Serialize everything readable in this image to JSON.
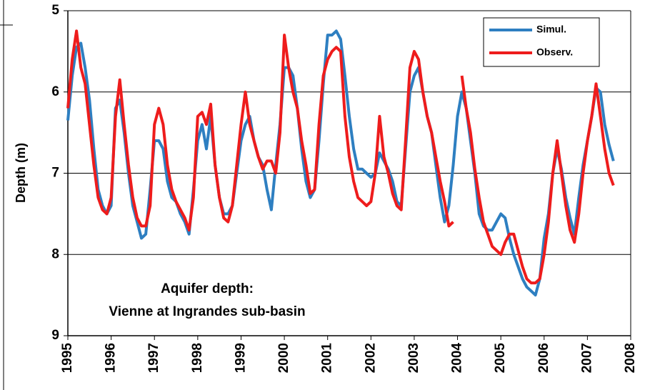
{
  "chart_data": {
    "type": "line",
    "y_label": "Depth (m)",
    "annotation": [
      "Aquifer depth:",
      "Vienne at Ingrandes sub-basin"
    ],
    "xlim": [
      1995,
      2008
    ],
    "xticks": [
      1995,
      1996,
      1997,
      1998,
      1999,
      2000,
      2001,
      2002,
      2003,
      2004,
      2005,
      2006,
      2007,
      2008
    ],
    "ylim": [
      5,
      9
    ],
    "yticks": [
      5,
      6,
      7,
      8,
      9
    ],
    "y_inverted": true,
    "grid": true,
    "legend": "upper right",
    "x": [
      1995,
      1995.1,
      1995.2,
      1995.3,
      1995.4,
      1995.5,
      1995.6,
      1995.7,
      1995.8,
      1995.9,
      1996,
      1996.1,
      1996.2,
      1996.3,
      1996.4,
      1996.5,
      1996.6,
      1996.7,
      1996.8,
      1996.9,
      1997,
      1997.1,
      1997.2,
      1997.3,
      1997.4,
      1997.5,
      1997.6,
      1997.7,
      1997.8,
      1997.9,
      1998,
      1998.1,
      1998.2,
      1998.3,
      1998.4,
      1998.5,
      1998.6,
      1998.7,
      1998.8,
      1998.9,
      1999,
      1999.1,
      1999.2,
      1999.3,
      1999.4,
      1999.5,
      1999.6,
      1999.7,
      1999.8,
      1999.9,
      2000,
      2000.1,
      2000.2,
      2000.3,
      2000.4,
      2000.5,
      2000.6,
      2000.7,
      2000.8,
      2000.9,
      2001,
      2001.1,
      2001.2,
      2001.3,
      2001.4,
      2001.5,
      2001.6,
      2001.7,
      2001.8,
      2001.9,
      2002,
      2002.1,
      2002.2,
      2002.3,
      2002.4,
      2002.5,
      2002.6,
      2002.7,
      2002.8,
      2002.9,
      2003,
      2003.1,
      2003.2,
      2003.3,
      2003.4,
      2003.5,
      2003.6,
      2003.7,
      2003.8,
      2003.9,
      2004,
      2004.1,
      2004.2,
      2004.3,
      2004.4,
      2004.5,
      2004.6,
      2004.7,
      2004.8,
      2004.9,
      2005,
      2005.1,
      2005.2,
      2005.3,
      2005.4,
      2005.5,
      2005.6,
      2005.7,
      2005.8,
      2005.9,
      2006,
      2006.1,
      2006.2,
      2006.3,
      2006.4,
      2006.5,
      2006.6,
      2006.7,
      2006.8,
      2006.9,
      2007,
      2007.1,
      2007.2,
      2007.3,
      2007.4,
      2007.5,
      2007.6
    ],
    "series": [
      {
        "name": "Simul.",
        "color": "#2e7fc1",
        "values": [
          6.35,
          5.8,
          5.45,
          5.4,
          5.7,
          6.1,
          6.7,
          7.2,
          7.4,
          7.5,
          7.4,
          6.2,
          6.1,
          6.5,
          7.0,
          7.4,
          7.6,
          7.8,
          7.75,
          7.2,
          6.6,
          6.6,
          6.7,
          7.1,
          7.3,
          7.35,
          7.5,
          7.6,
          7.75,
          7.2,
          6.6,
          6.4,
          6.7,
          6.3,
          6.9,
          7.3,
          7.5,
          7.5,
          7.4,
          7.0,
          6.6,
          6.4,
          6.3,
          6.6,
          6.8,
          6.9,
          7.2,
          7.45,
          6.9,
          6.4,
          5.7,
          5.7,
          5.8,
          6.2,
          6.7,
          7.1,
          7.3,
          7.2,
          6.6,
          5.9,
          5.3,
          5.3,
          5.25,
          5.35,
          5.8,
          6.3,
          6.7,
          6.95,
          6.95,
          7.0,
          7.05,
          7.0,
          6.75,
          6.85,
          6.95,
          7.1,
          7.35,
          7.4,
          6.7,
          6.0,
          5.8,
          5.7,
          6.0,
          6.3,
          6.5,
          6.9,
          7.3,
          7.6,
          7.4,
          6.9,
          6.3,
          6.0,
          6.2,
          6.6,
          7.0,
          7.5,
          7.65,
          7.7,
          7.7,
          7.6,
          7.5,
          7.55,
          7.8,
          8.0,
          8.15,
          8.3,
          8.4,
          8.45,
          8.5,
          8.3,
          7.8,
          7.5,
          7.0,
          6.7,
          6.95,
          7.3,
          7.55,
          7.75,
          7.3,
          6.9,
          6.6,
          6.3,
          5.95,
          6.0,
          6.4,
          6.65,
          6.85
        ]
      },
      {
        "name": "Observ.",
        "color": "#ee1c1c",
        "values": [
          6.2,
          5.6,
          5.25,
          5.7,
          5.9,
          6.4,
          6.9,
          7.3,
          7.45,
          7.5,
          7.3,
          6.3,
          5.85,
          6.4,
          6.9,
          7.3,
          7.55,
          7.65,
          7.65,
          7.4,
          6.4,
          6.2,
          6.4,
          6.9,
          7.2,
          7.35,
          7.45,
          7.55,
          7.7,
          7.3,
          6.3,
          6.25,
          6.4,
          6.15,
          6.9,
          7.3,
          7.55,
          7.6,
          7.4,
          6.9,
          6.4,
          6.0,
          6.4,
          6.6,
          6.8,
          6.95,
          6.85,
          6.85,
          7.0,
          6.5,
          5.3,
          5.7,
          6.0,
          6.2,
          6.6,
          6.9,
          7.25,
          7.2,
          6.4,
          5.8,
          5.6,
          5.5,
          5.45,
          5.5,
          6.3,
          6.8,
          7.1,
          7.3,
          7.35,
          7.4,
          7.35,
          7.0,
          6.3,
          6.8,
          7.0,
          7.25,
          7.4,
          7.45,
          6.6,
          5.7,
          5.5,
          5.6,
          6.0,
          6.3,
          6.5,
          6.8,
          7.1,
          7.35,
          7.65,
          7.6,
          null,
          5.8,
          6.2,
          6.5,
          6.95,
          7.3,
          7.6,
          7.75,
          7.9,
          7.95,
          8.0,
          7.85,
          7.75,
          7.75,
          7.95,
          8.15,
          8.3,
          8.35,
          8.35,
          8.3,
          8.0,
          7.6,
          7.0,
          6.6,
          7.0,
          7.4,
          7.7,
          7.85,
          7.5,
          7.0,
          6.6,
          6.3,
          5.9,
          6.3,
          6.7,
          7.0,
          7.15
        ]
      }
    ]
  }
}
